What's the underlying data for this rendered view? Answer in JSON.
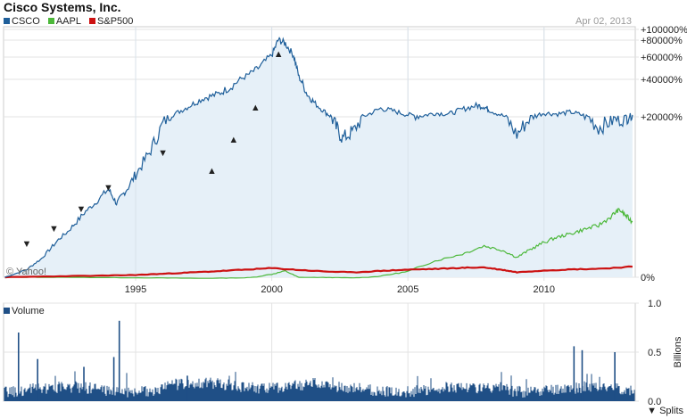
{
  "title": "Cisco Systems, Inc.",
  "date": "Apr 02, 2013",
  "legend": [
    {
      "label": "CSCO",
      "color": "#1f5f9a"
    },
    {
      "label": "AAPL",
      "color": "#4cb83a"
    },
    {
      "label": "S&P500",
      "color": "#cc1111"
    }
  ],
  "volume_label": "Volume",
  "splits_label": "▼ Splits",
  "watermark": "© Yahoo!",
  "chart_data": [
    {
      "type": "area",
      "title": "Cisco Systems, Inc.",
      "x_ticks": [
        "1995",
        "2000",
        "2005",
        "2010"
      ],
      "y_ticks": [
        "+100000%",
        "+80000%",
        "+60000%",
        "+40000%",
        "+20000%",
        "0%"
      ],
      "y_scale": "log-compressed percent",
      "grid": true,
      "legend_position": "top-left",
      "series": [
        {
          "name": "CSCO",
          "color": "#1f5f9a",
          "fill": "#e6f0f8",
          "x": [
            1990.2,
            1991.0,
            1991.5,
            1992.0,
            1992.5,
            1993.0,
            1993.5,
            1994.0,
            1994.3,
            1994.6,
            1995.0,
            1995.5,
            1996.0,
            1996.5,
            1997.0,
            1997.5,
            1998.0,
            1998.5,
            1999.0,
            1999.5,
            2000.0,
            2000.25,
            2000.5,
            2000.8,
            2001.0,
            2001.3,
            2001.6,
            2002.0,
            2002.3,
            2002.6,
            2003.0,
            2003.5,
            2004.0,
            2004.5,
            2005.0,
            2005.5,
            2006.0,
            2006.5,
            2007.0,
            2007.5,
            2007.8,
            2008.0,
            2008.5,
            2009.0,
            2009.5,
            2010.0,
            2010.5,
            2011.0,
            2011.5,
            2012.0,
            2012.5,
            2013.0,
            2013.25
          ],
          "y": [
            0,
            500,
            1200,
            2500,
            3800,
            5500,
            7500,
            10000,
            7500,
            9500,
            12000,
            15000,
            19000,
            22000,
            26000,
            30000,
            32000,
            36000,
            42000,
            50000,
            62000,
            81000,
            76000,
            62000,
            42000,
            32000,
            27000,
            22000,
            19000,
            17000,
            18000,
            21000,
            24500,
            23000,
            21000,
            20500,
            22000,
            21500,
            24000,
            26000,
            25500,
            23500,
            20500,
            17500,
            20000,
            22000,
            21500,
            22500,
            20500,
            18500,
            19500,
            20000,
            21000
          ]
        },
        {
          "name": "AAPL",
          "color": "#4cb83a",
          "x": [
            1990.2,
            1992.0,
            1994.0,
            1996.0,
            1997.5,
            1999.0,
            2000.0,
            2000.5,
            2001.0,
            2002.0,
            2003.0,
            2004.0,
            2005.0,
            2006.0,
            2007.0,
            2007.8,
            2008.5,
            2009.0,
            2009.5,
            2010.0,
            2010.5,
            2011.0,
            2011.5,
            2012.0,
            2012.5,
            2012.75,
            2013.0,
            2013.25
          ],
          "y": [
            0,
            0,
            -60,
            -120,
            -180,
            -100,
            200,
            420,
            -20,
            -40,
            -100,
            80,
            380,
            1100,
            1700,
            2400,
            2000,
            1400,
            2100,
            2700,
            3200,
            3600,
            4100,
            4500,
            5600,
            6400,
            5600,
            4900
          ]
        },
        {
          "name": "S&P500",
          "color": "#cc1111",
          "x": [
            1990.2,
            1992.0,
            1994.0,
            1995.0,
            1996.0,
            1997.0,
            1998.0,
            1999.0,
            2000.0,
            2001.0,
            2002.0,
            2003.0,
            2004.0,
            2005.0,
            2006.0,
            2007.0,
            2007.8,
            2008.5,
            2009.0,
            2010.0,
            2011.0,
            2012.0,
            2013.25
          ],
          "y": [
            0,
            60,
            110,
            150,
            230,
            310,
            400,
            500,
            600,
            480,
            380,
            320,
            420,
            500,
            550,
            620,
            650,
            480,
            330,
            450,
            520,
            560,
            700
          ]
        }
      ],
      "markers": [
        {
          "x": 1991.0,
          "type": "split",
          "symbol": "▼"
        },
        {
          "x": 1992.0,
          "type": "split",
          "symbol": "▼"
        },
        {
          "x": 1993.0,
          "type": "split",
          "symbol": "▼"
        },
        {
          "x": 1994.0,
          "type": "split",
          "symbol": "▼"
        },
        {
          "x": 1996.0,
          "type": "split",
          "symbol": "▼"
        },
        {
          "x": 1997.8,
          "type": "up",
          "symbol": "▲"
        },
        {
          "x": 1998.6,
          "type": "up",
          "symbol": "▲"
        },
        {
          "x": 1999.4,
          "type": "up",
          "symbol": "▲"
        },
        {
          "x": 2000.25,
          "type": "up",
          "symbol": "▲"
        }
      ]
    },
    {
      "type": "bar",
      "title": "Volume",
      "ylabel": "Billions",
      "y_ticks": [
        "1.0",
        "0.5",
        "0.0"
      ],
      "ylim": [
        0,
        1.0
      ],
      "series": [
        {
          "name": "Volume",
          "color": "#1f4f86"
        }
      ],
      "spikes": [
        {
          "x": 1990.7,
          "value": 0.7
        },
        {
          "x": 1991.4,
          "value": 0.43
        },
        {
          "x": 1993.1,
          "value": 0.35
        },
        {
          "x": 1994.2,
          "value": 0.45
        },
        {
          "x": 1994.4,
          "value": 0.82
        },
        {
          "x": 1996.9,
          "value": 0.26
        },
        {
          "x": 2011.1,
          "value": 0.56
        },
        {
          "x": 2011.4,
          "value": 0.52
        },
        {
          "x": 2012.6,
          "value": 0.5
        }
      ]
    }
  ]
}
